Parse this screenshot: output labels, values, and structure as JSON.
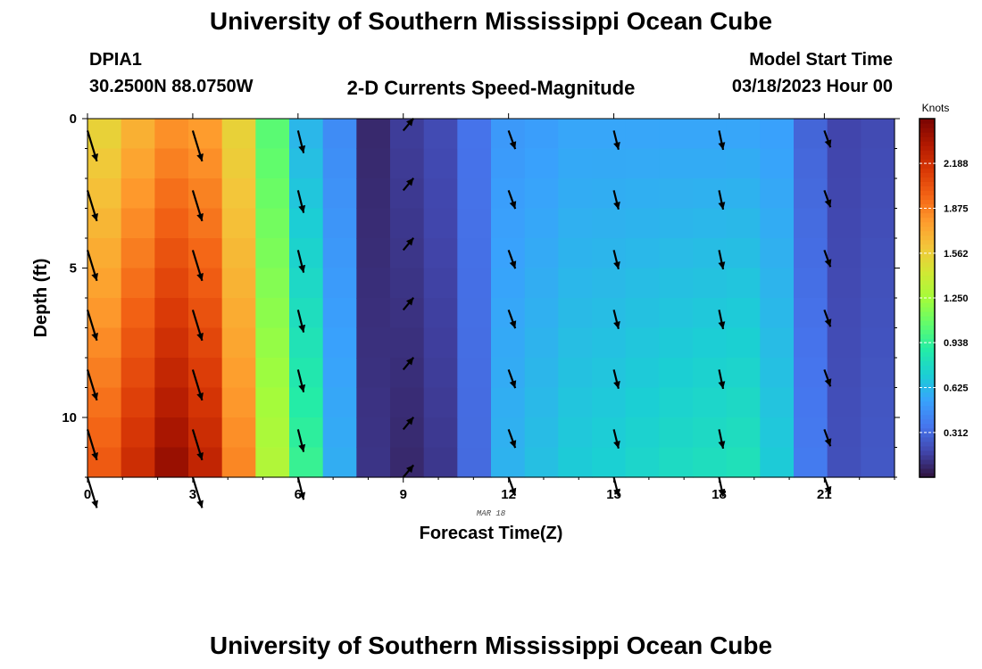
{
  "header": {
    "title": "University of Southern Mississippi Ocean Cube",
    "station_id": "DPIA1",
    "station_coords": "30.2500N  88.0750W",
    "plot_title": "2-D Currents Speed-Magnitude",
    "model_start_label": "Model Start Time",
    "model_start_value": "03/18/2023 Hour 00"
  },
  "footer": {
    "title": "University of Southern Mississippi Ocean Cube"
  },
  "chart_data": {
    "type": "heatmap",
    "xlabel": "Forecast Time(Z)",
    "ylabel": "Depth (ft)",
    "date_label": "MAR 18",
    "xlim": [
      0,
      23
    ],
    "ylim": [
      0,
      12
    ],
    "x_ticks": [
      0,
      3,
      6,
      9,
      12,
      15,
      18,
      21
    ],
    "x_tick_labels": [
      "0",
      "3",
      "6",
      "9",
      "12",
      "15",
      "18",
      "21"
    ],
    "y_ticks": [
      0,
      5,
      10
    ],
    "y_tick_labels": [
      "0",
      "5",
      "10"
    ],
    "colorbar": {
      "label": "Knots",
      "min": 0,
      "max": 2.5,
      "ticks": [
        0.312,
        0.625,
        0.938,
        1.25,
        1.562,
        1.875,
        2.188
      ],
      "tick_labels": [
        "0.312",
        "0.625",
        "0.938",
        "1.250",
        "1.562",
        "1.875",
        "2.188"
      ],
      "colors": [
        "#30123b",
        "#4145ab",
        "#4675ed",
        "#39a2fc",
        "#1bcfd4",
        "#24eca6",
        "#61fc6c",
        "#a4fc3b",
        "#d1e834",
        "#f3c63a",
        "#fe9b2d",
        "#f36315",
        "#d93806",
        "#b11901",
        "#7a0402"
      ]
    },
    "times": [
      0,
      1,
      2,
      3,
      4,
      5,
      6,
      7,
      8,
      9,
      10,
      11,
      12,
      13,
      14,
      15,
      16,
      17,
      18,
      19,
      20,
      21,
      22,
      23
    ],
    "depth_rows": 12,
    "surface_speed": [
      1.55,
      1.7,
      1.82,
      1.78,
      1.55,
      1.05,
      0.62,
      0.45,
      0.08,
      0.15,
      0.2,
      0.35,
      0.5,
      0.52,
      0.55,
      0.55,
      0.55,
      0.55,
      0.55,
      0.55,
      0.53,
      0.3,
      0.18,
      0.2
    ],
    "bottom_speed": [
      2.0,
      2.2,
      2.4,
      2.25,
      1.85,
      1.3,
      0.95,
      0.58,
      0.12,
      0.08,
      0.13,
      0.32,
      0.6,
      0.65,
      0.7,
      0.72,
      0.75,
      0.78,
      0.8,
      0.82,
      0.7,
      0.38,
      0.22,
      0.25
    ],
    "vectors": {
      "times": [
        0,
        3,
        6,
        9,
        12,
        15,
        18,
        21
      ],
      "depths": [
        0.4,
        2.4,
        4.4,
        6.4,
        8.4,
        10.4,
        12
      ],
      "direction_deg": [
        163,
        163,
        166,
        40,
        160,
        166,
        168,
        160
      ],
      "speed_knots": [
        2.0,
        2.0,
        1.0,
        0.18,
        0.6,
        0.6,
        0.6,
        0.4
      ]
    }
  }
}
